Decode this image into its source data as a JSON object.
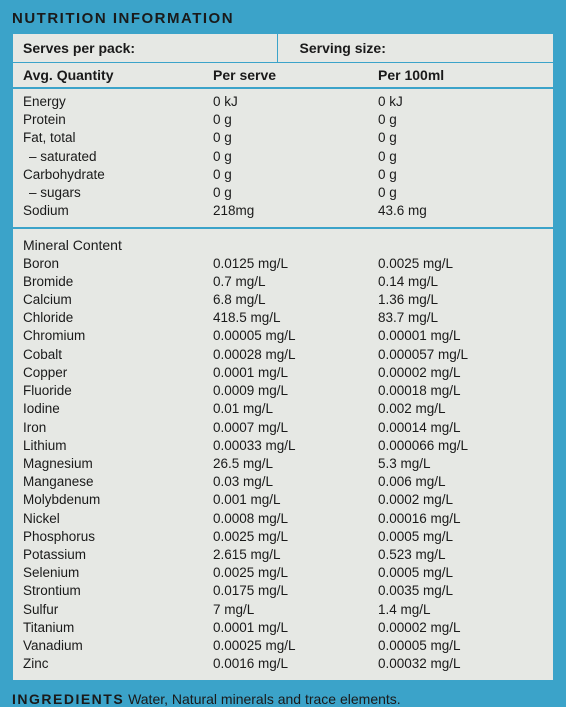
{
  "colors": {
    "page_bg": "#3ba3c9",
    "panel_bg": "#e6e8e4",
    "border": "#3ba3c9",
    "text": "#1a1a1a"
  },
  "title": "NUTRITION INFORMATION",
  "top": {
    "serves_label": "Serves per pack:",
    "serving_size_label": "Serving size:"
  },
  "headers": {
    "qty": "Avg. Quantity",
    "per_serve": "Per serve",
    "per_100": "Per 100ml"
  },
  "nutrients": [
    {
      "name": "Energy",
      "serve": "0 kJ",
      "per100": "0 kJ",
      "indent": false
    },
    {
      "name": "Protein",
      "serve": "0 g",
      "per100": "0 g",
      "indent": false
    },
    {
      "name": "Fat, total",
      "serve": "0 g",
      "per100": "0 g",
      "indent": false
    },
    {
      "name": "– saturated",
      "serve": "0 g",
      "per100": "0 g",
      "indent": true
    },
    {
      "name": "Carbohydrate",
      "serve": "0 g",
      "per100": "0 g",
      "indent": false
    },
    {
      "name": "– sugars",
      "serve": "0 g",
      "per100": "0 g",
      "indent": true
    },
    {
      "name": "Sodium",
      "serve": "218mg",
      "per100": "43.6 mg",
      "indent": false
    }
  ],
  "mineral_heading": "Mineral Content",
  "minerals": [
    {
      "name": "Boron",
      "serve": "0.0125 mg/L",
      "per100": "0.0025 mg/L"
    },
    {
      "name": "Bromide",
      "serve": "0.7 mg/L",
      "per100": "0.14 mg/L"
    },
    {
      "name": "Calcium",
      "serve": "6.8 mg/L",
      "per100": "1.36 mg/L"
    },
    {
      "name": "Chloride",
      "serve": "418.5 mg/L",
      "per100": "83.7 mg/L"
    },
    {
      "name": "Chromium",
      "serve": "0.00005 mg/L",
      "per100": "0.00001 mg/L"
    },
    {
      "name": "Cobalt",
      "serve": "0.00028 mg/L",
      "per100": "0.000057 mg/L"
    },
    {
      "name": "Copper",
      "serve": "0.0001 mg/L",
      "per100": "0.00002 mg/L"
    },
    {
      "name": "Fluoride",
      "serve": "0.0009 mg/L",
      "per100": "0.00018 mg/L"
    },
    {
      "name": "Iodine",
      "serve": "0.01 mg/L",
      "per100": "0.002 mg/L"
    },
    {
      "name": "Iron",
      "serve": "0.0007 mg/L",
      "per100": "0.00014 mg/L"
    },
    {
      "name": "Lithium",
      "serve": "0.00033 mg/L",
      "per100": "0.000066 mg/L"
    },
    {
      "name": "Magnesium",
      "serve": "26.5 mg/L",
      "per100": "5.3 mg/L"
    },
    {
      "name": "Manganese",
      "serve": "0.03 mg/L",
      "per100": "0.006 mg/L"
    },
    {
      "name": "Molybdenum",
      "serve": "0.001 mg/L",
      "per100": "0.0002 mg/L"
    },
    {
      "name": "Nickel",
      "serve": "0.0008 mg/L",
      "per100": "0.00016 mg/L"
    },
    {
      "name": "Phosphorus",
      "serve": "0.0025 mg/L",
      "per100": "0.0005 mg/L"
    },
    {
      "name": "Potassium",
      "serve": "2.615 mg/L",
      "per100": "0.523 mg/L"
    },
    {
      "name": "Selenium",
      "serve": "0.0025 mg/L",
      "per100": "0.0005 mg/L"
    },
    {
      "name": "Strontium",
      "serve": "0.0175 mg/L",
      "per100": "0.0035 mg/L"
    },
    {
      "name": "Sulfur",
      "serve": "7 mg/L",
      "per100": "1.4 mg/L"
    },
    {
      "name": "Titanium",
      "serve": "0.0001 mg/L",
      "per100": "0.00002 mg/L"
    },
    {
      "name": "Vanadium",
      "serve": "0.00025 mg/L",
      "per100": "0.00005 mg/L"
    },
    {
      "name": "Zinc",
      "serve": "0.0016 mg/L",
      "per100": "0.00032 mg/L"
    }
  ],
  "ingredients": {
    "label": "INGREDIENTS",
    "text": "Water, Natural minerals and trace elements."
  }
}
